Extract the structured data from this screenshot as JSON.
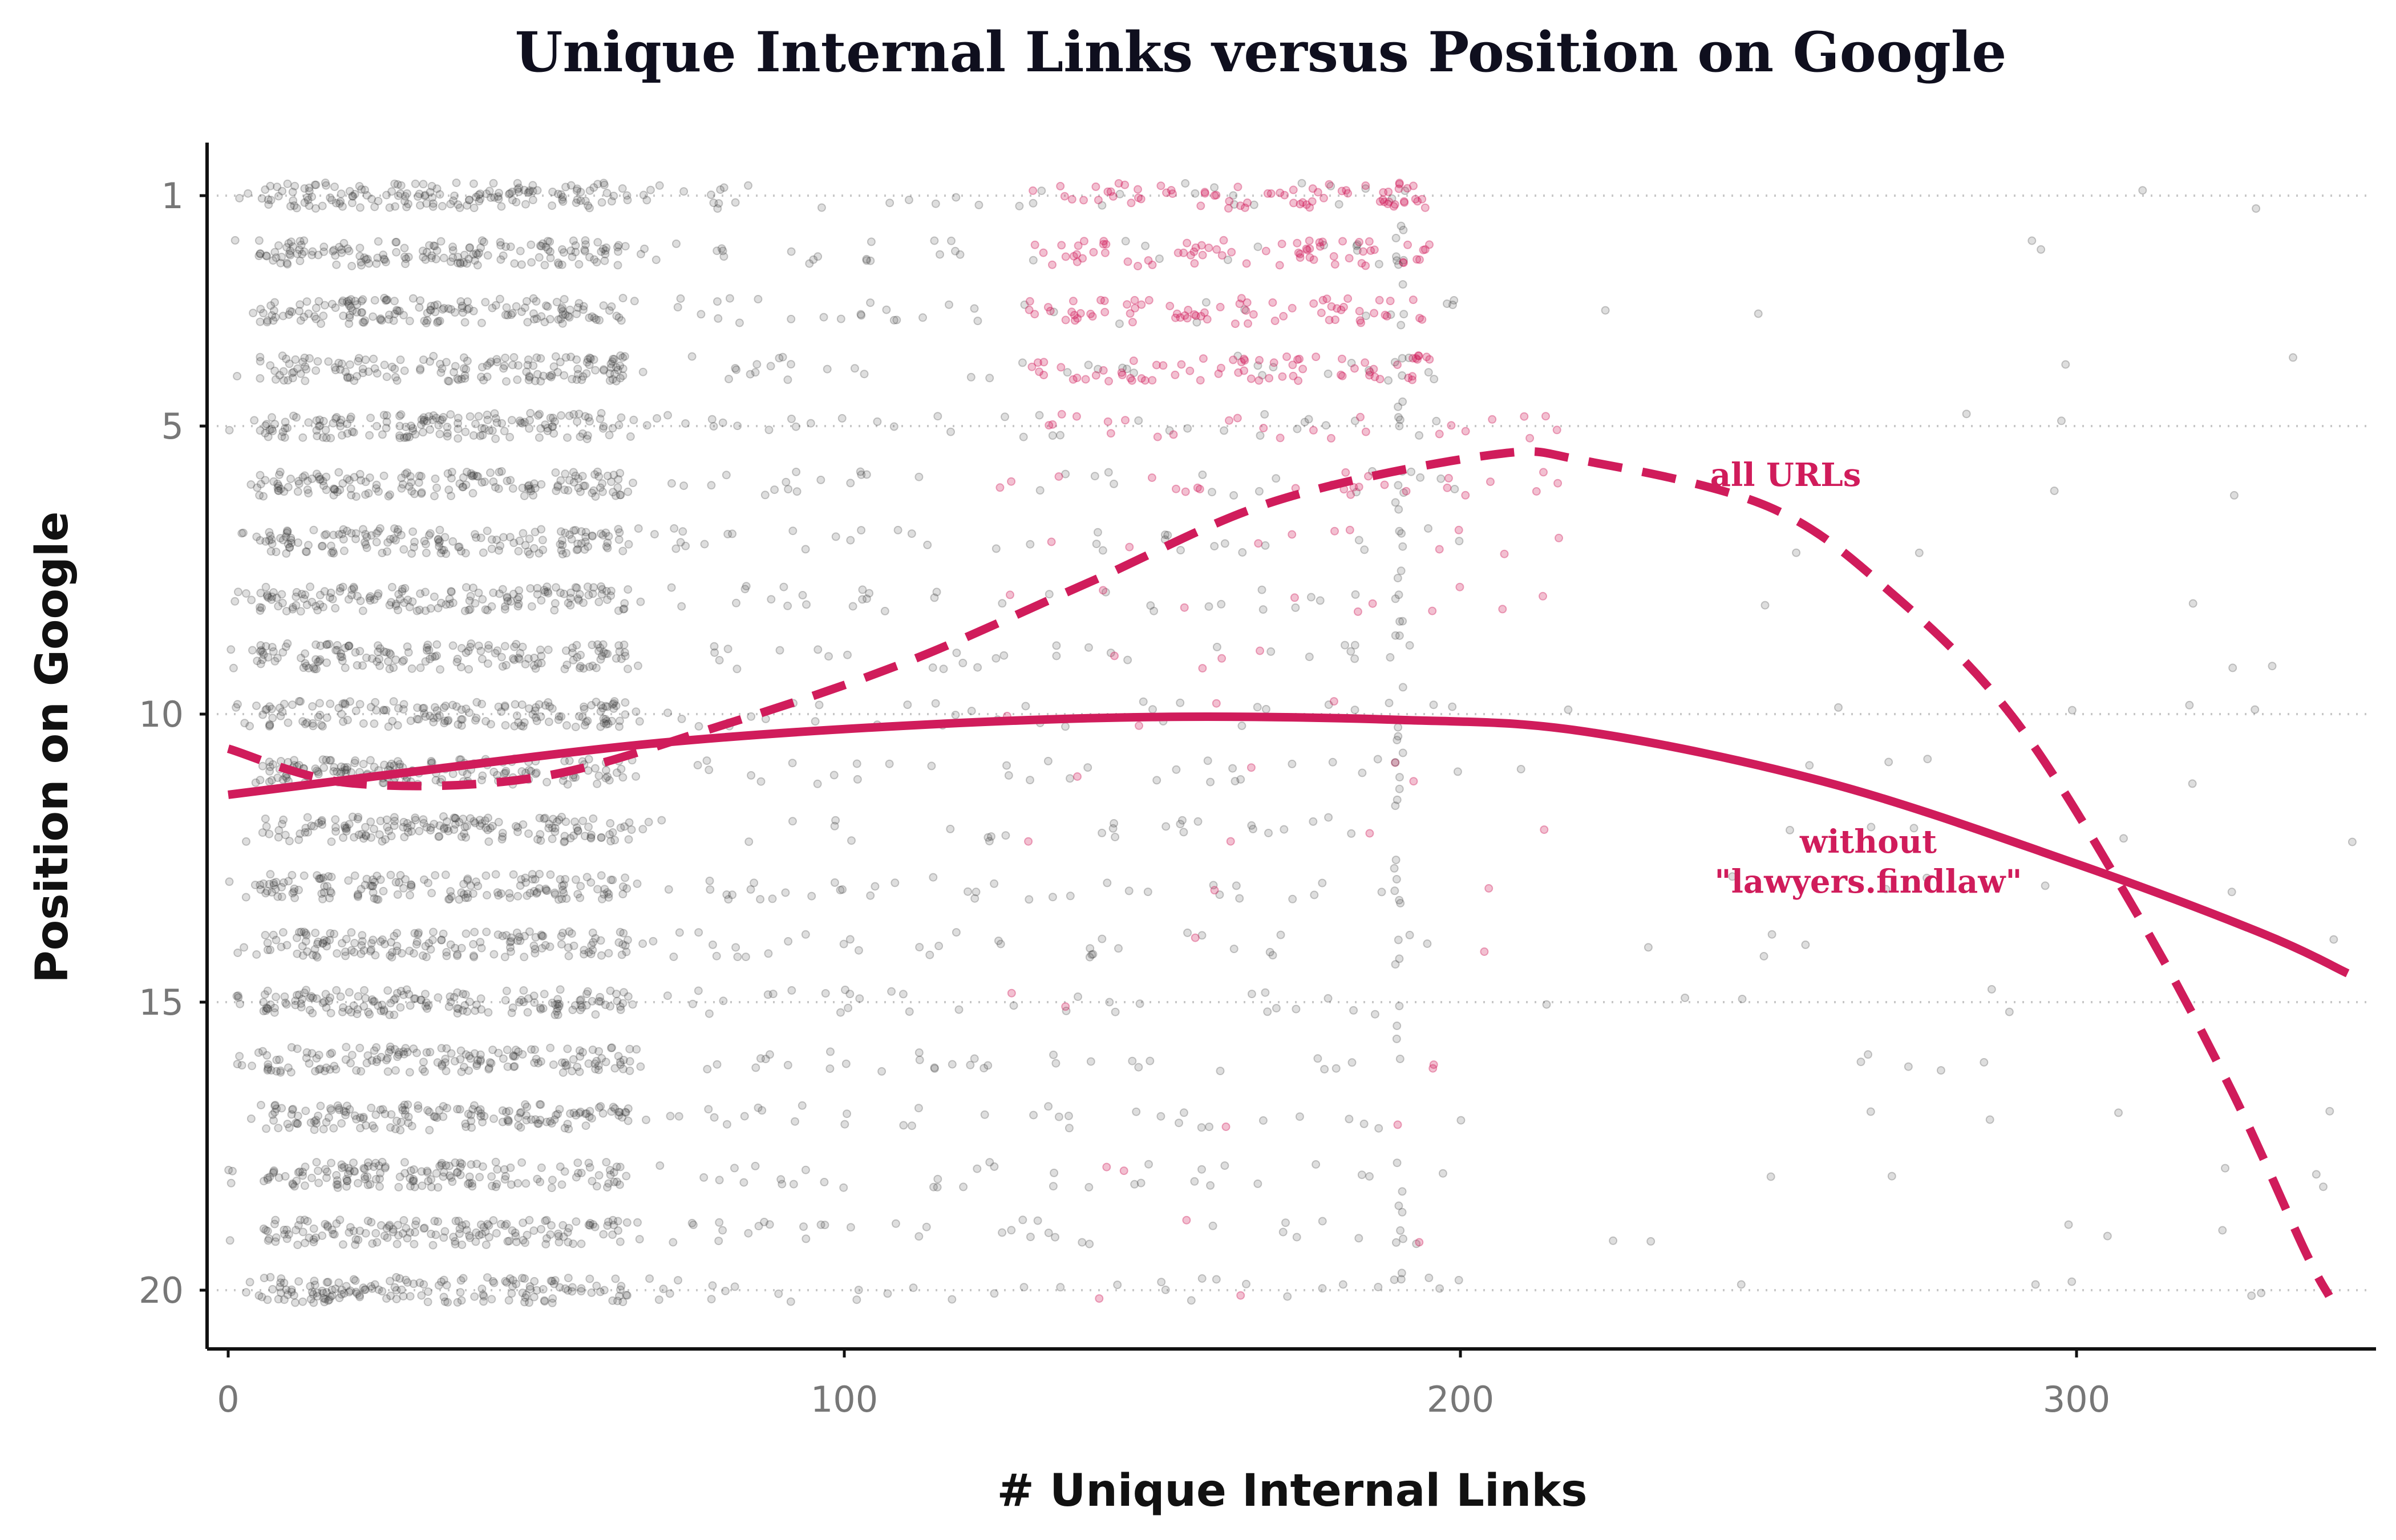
{
  "chart_data": {
    "type": "scatter",
    "title": "Unique Internal Links versus Position on Google",
    "xlabel": "# Unique Internal Links",
    "ylabel": "Position on Google",
    "xlim": [
      -3,
      346
    ],
    "ylim": [
      1,
      20
    ],
    "y_reversed": true,
    "x_ticks": [
      0,
      100,
      200,
      300
    ],
    "y_ticks": [
      1,
      5,
      10,
      15,
      20
    ],
    "gridlines": "horizontal dotted at y ticks",
    "colors": {
      "highlight": "#d01c5b",
      "points": "#333333",
      "axis": "#111111",
      "tick_label": "#777777"
    },
    "series": [
      {
        "name": "all URLs",
        "style": "dashed",
        "points": [
          [
            0,
            10.6
          ],
          [
            20,
            11.2
          ],
          [
            50,
            11.1
          ],
          [
            80,
            10.2
          ],
          [
            110,
            9.1
          ],
          [
            140,
            7.7
          ],
          [
            170,
            6.3
          ],
          [
            205,
            5.5
          ],
          [
            220,
            5.6
          ],
          [
            250,
            6.4
          ],
          [
            270,
            7.9
          ],
          [
            290,
            10.1
          ],
          [
            310,
            13.5
          ],
          [
            325,
            16.5
          ],
          [
            337,
            19.3
          ],
          [
            341,
            20.1
          ]
        ]
      },
      {
        "name": "without \"lawyers.findlaw\"",
        "style": "solid",
        "points": [
          [
            0,
            11.4
          ],
          [
            30,
            11.0
          ],
          [
            70,
            10.5
          ],
          [
            110,
            10.2
          ],
          [
            150,
            10.05
          ],
          [
            190,
            10.1
          ],
          [
            220,
            10.3
          ],
          [
            260,
            11.2
          ],
          [
            300,
            12.6
          ],
          [
            330,
            13.8
          ],
          [
            344,
            14.5
          ]
        ]
      }
    ],
    "annotations": [
      {
        "text": "all URLs",
        "x": 253,
        "y": 5.8
      },
      {
        "text_lines": [
          "without",
          "\"lawyers.findlaw\""
        ],
        "x": 265,
        "y": 12.2
      }
    ],
    "scatter_clusters": [
      {
        "x_range": [
          0,
          100
        ],
        "dense_core": [
          5,
          60
        ],
        "density": "very high",
        "color": "points"
      },
      {
        "x_range": [
          100,
          200
        ],
        "density": "medium",
        "color": "points"
      },
      {
        "x_range": [
          130,
          200
        ],
        "y_range": [
          1,
          8
        ],
        "density": "medium",
        "color": "highlight"
      },
      {
        "x_range": [
          200,
          346
        ],
        "density": "sparse",
        "color": "points"
      }
    ]
  }
}
